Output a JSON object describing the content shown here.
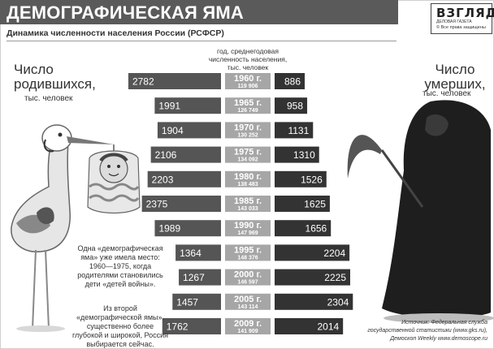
{
  "header": {
    "title": "ДЕМОГРАФИЧЕСКАЯ ЯМА",
    "subtitle": "Динамика численности населения России (РСФСР)"
  },
  "logo": {
    "name": "ВЗГЛЯД",
    "tagline": "ДЕЛОВАЯ ГАЗЕТА",
    "copyright": "© Все права защищены"
  },
  "labels": {
    "births_big": "Число родившихся,",
    "births_small": "тыс. человек",
    "deaths_big": "Число умерших,",
    "deaths_small": "тыс. человек",
    "population_head": "год, среднегодовая численность населения, тыс. человек"
  },
  "notes": {
    "note1": "Одна «демографическая яма» уже имела место: 1960—1975, когда родителями становились дети «детей войны».",
    "note2": "Из второй «демографической ямы», существенно более глубокой и широкой, Россия выбирается сейчас."
  },
  "source": "Источник: Федеральная служба государственной статистики (www.gks.ru), Демоскоп Weekly www.demoscope.ru",
  "colors": {
    "title_band": "#5a5a5a",
    "births_bar": "#555555",
    "year_box": "#a6a6a6",
    "deaths_bar": "#333333"
  },
  "chart_data": {
    "type": "bar",
    "title": "ДЕМОГРАФИЧЕСКАЯ ЯМА",
    "subtitle": "Динамика численности населения России (РСФСР)",
    "categories": [
      "1960 г.",
      "1965 г.",
      "1970 г.",
      "1975 г.",
      "1980 г.",
      "1985 г.",
      "1990 г.",
      "1995 г.",
      "2000 г.",
      "2005 г.",
      "2009 г."
    ],
    "population": [
      "119 906",
      "126 749",
      "130 252",
      "134 092",
      "138 483",
      "143 033",
      "147 969",
      "148 376",
      "146 597",
      "143 114",
      "141 909"
    ],
    "series": [
      {
        "name": "Число родившихся, тыс. человек",
        "values": [
          2782,
          1991,
          1904,
          2106,
          2203,
          2375,
          1989,
          1364,
          1267,
          1457,
          1762
        ]
      },
      {
        "name": "Число умерших, тыс. человек",
        "values": [
          886,
          958,
          1131,
          1310,
          1526,
          1625,
          1656,
          2204,
          2225,
          2304,
          2014
        ]
      }
    ]
  }
}
